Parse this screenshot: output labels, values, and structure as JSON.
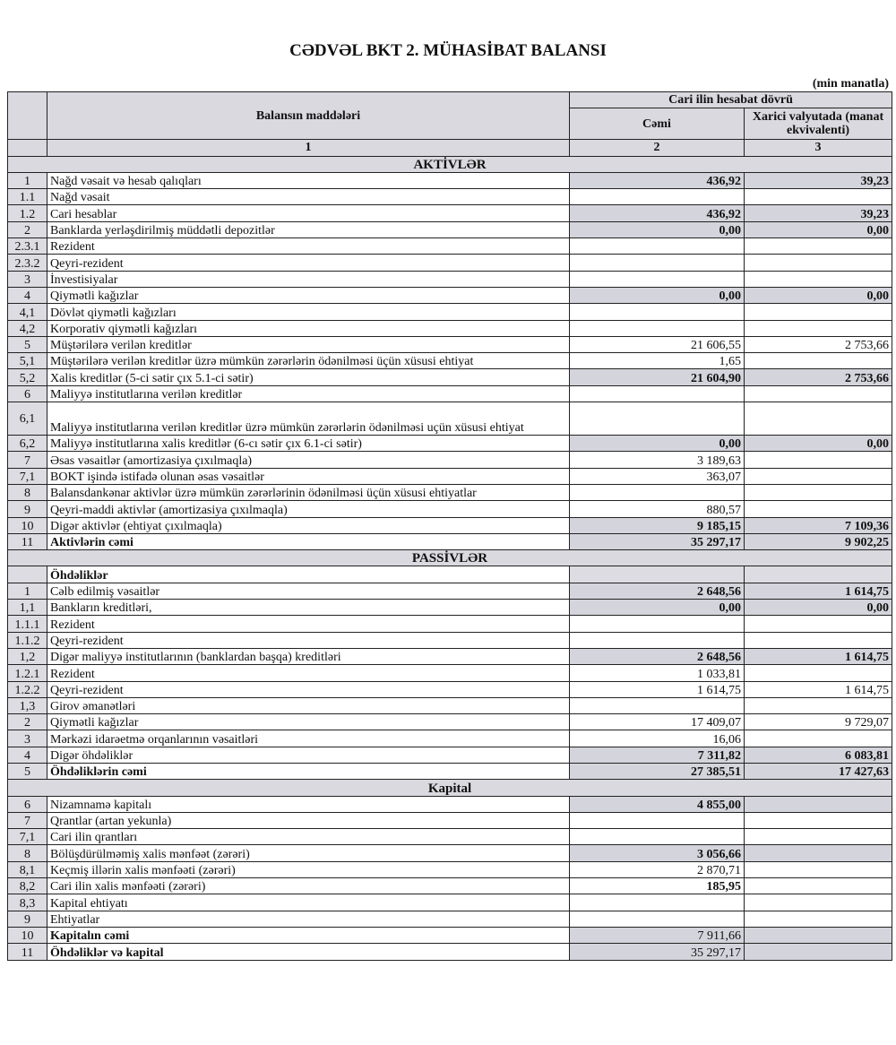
{
  "title": "CƏDVƏL BKT 2. MÜHASİBAT BALANSI",
  "unit": "(min manatla)",
  "header": {
    "items": "Balansın maddələri",
    "period": "Cari ilin hesabat dövrü",
    "col2": "Cəmi",
    "col3": "Xarici valyutada (manat ekvivalenti)",
    "n1": "1",
    "n2": "2",
    "n3": "3"
  },
  "sections": [
    {
      "title": "AKTİVLƏR",
      "rows": [
        {
          "no": "1",
          "label": "Nağd vəsait və hesab qalıqları",
          "c2": "436,92",
          "c3": "39,23",
          "b": 1,
          "sh": 1
        },
        {
          "no": "1.1",
          "label": "Nağd vəsait",
          "c2": "",
          "c3": ""
        },
        {
          "no": "1.2",
          "label": "Cari hesablar",
          "c2": "436,92",
          "c3": "39,23",
          "b": 1,
          "sh": 1
        },
        {
          "no": "2",
          "label": "Banklarda yerləşdirilmiş müddətli depozitlər",
          "c2": "0,00",
          "c3": "0,00",
          "b": 1,
          "sh": 1
        },
        {
          "no": "2.3.1",
          "label": "Rezident",
          "c2": "",
          "c3": ""
        },
        {
          "no": "2.3.2",
          "label": "Qeyri-rezident",
          "c2": "",
          "c3": ""
        },
        {
          "no": "3",
          "label": "İnvestisiyalar",
          "c2": "",
          "c3": ""
        },
        {
          "no": "4",
          "label": "Qiymətli kağızlar",
          "c2": "0,00",
          "c3": "0,00",
          "b": 1,
          "sh": 1
        },
        {
          "no": "4,1",
          "label": "Dövlət qiymətli kağızları",
          "c2": "",
          "c3": ""
        },
        {
          "no": "4,2",
          "label": "Korporativ qiymətli kağızları",
          "c2": "",
          "c3": ""
        },
        {
          "no": "5",
          "label": "Müştərilərə verilən kreditlər",
          "c2": "21 606,55",
          "c3": "2 753,66"
        },
        {
          "no": "5,1",
          "label": "Müştərilərə verilən kreditlər üzrə mümkün zərərlərin ödənilməsi üçün xüsusi ehtiyat",
          "c2": "1,65",
          "c3": ""
        },
        {
          "no": "5,2",
          "label": "Xalis kreditlər (5-ci sətir çıx 5.1-ci sətir)",
          "c2": "21 604,90",
          "c3": "2 753,66",
          "b": 1,
          "sh": 1
        },
        {
          "no": "6",
          "label": "Maliyyə institutlarına verilən kreditlər",
          "c2": "",
          "c3": ""
        },
        {
          "no": "6,1",
          "label": "Maliyyə institutlarına verilən kreditlər üzrə mümkün zərərlərin ödənilməsi uçün xüsusi ehtiyat",
          "c2": "",
          "c3": "",
          "tall": 1
        },
        {
          "no": "6,2",
          "label": "Maliyyə institutlarına xalis kreditlər (6-cı sətir çıx 6.1-ci sətir)",
          "c2": "0,00",
          "c3": "0,00",
          "b": 1,
          "sh": 1
        },
        {
          "no": "7",
          "label": "Əsas vəsaitlər (amortizasiya çıxılmaqla)",
          "c2": "3 189,63",
          "c3": ""
        },
        {
          "no": "7,1",
          "label": "BOKT işində istifadə olunan əsas vəsaitlər",
          "c2": "363,07",
          "c3": ""
        },
        {
          "no": "8",
          "label": "Balansdankənar aktivlər üzrə mümkün zərərlərinin ödənilməsi üçün xüsusi ehtiyatlar",
          "c2": "",
          "c3": ""
        },
        {
          "no": "9",
          "label": "Qeyri-maddi aktivlər (amortizasiya çıxılmaqla)",
          "c2": "880,57",
          "c3": ""
        },
        {
          "no": "10",
          "label": "Digər aktivlər (ehtiyat çıxılmaqla)",
          "c2": "9 185,15",
          "c3": "7 109,36",
          "b": 1,
          "sh": 1
        },
        {
          "no": "11",
          "label": "Aktivlərin cəmi",
          "c2": "35 297,17",
          "c3": "9 902,25",
          "b": 1,
          "sh": 1,
          "lb": 1
        }
      ]
    },
    {
      "title": "PASSİVLƏR",
      "rows": [
        {
          "no": "",
          "label": "Öhdəliklər",
          "c2": "",
          "c3": "",
          "lb": 1,
          "blank": 1
        },
        {
          "no": "1",
          "label": "Cəlb edilmiş vəsaitlər",
          "c2": "2 648,56",
          "c3": "1 614,75",
          "b": 1,
          "sh": 1
        },
        {
          "no": "1,1",
          "label": "Bankların kreditləri,",
          "c2": "0,00",
          "c3": "0,00",
          "b": 1,
          "sh": 1
        },
        {
          "no": "1.1.1",
          "label": "Rezident",
          "c2": "",
          "c3": ""
        },
        {
          "no": "1.1.2",
          "label": "Qeyri-rezident",
          "c2": "",
          "c3": ""
        },
        {
          "no": "1,2",
          "label": "Digər maliyyə institutlarının (banklardan başqa) kreditləri",
          "c2": "2 648,56",
          "c3": "1 614,75",
          "b": 1,
          "sh": 1
        },
        {
          "no": "1.2.1",
          "label": "Rezident",
          "c2": "1 033,81",
          "c3": ""
        },
        {
          "no": "1.2.2",
          "label": "Qeyri-rezident",
          "c2": "1 614,75",
          "c3": "1 614,75"
        },
        {
          "no": "1,3",
          "label": "Girov əmanətləri",
          "c2": "",
          "c3": ""
        },
        {
          "no": "2",
          "label": "Qiymətli kağızlar",
          "c2": "17 409,07",
          "c3": "9 729,07"
        },
        {
          "no": "3",
          "label": "Mərkəzi idarəetmə orqanlarının vəsaitləri",
          "c2": "16,06",
          "c3": ""
        },
        {
          "no": "4",
          "label": "Digər öhdəliklər",
          "c2": "7 311,82",
          "c3": "6 083,81",
          "b": 1,
          "sh": 1
        },
        {
          "no": "5",
          "label": "Öhdəliklərin cəmi",
          "c2": "27 385,51",
          "c3": "17 427,63",
          "b": 1,
          "sh": 1,
          "lb": 1
        }
      ]
    },
    {
      "title": "Kapital",
      "rows": [
        {
          "no": "6",
          "label": "Nizamnamə kapitalı",
          "c2": "4 855,00",
          "c3": "",
          "b": 1,
          "sh": 1
        },
        {
          "no": "7",
          "label": "Qrantlar (artan yekunla)",
          "c2": "",
          "c3": ""
        },
        {
          "no": "7,1",
          "label": "Cari ilin qrantları",
          "c2": "",
          "c3": ""
        },
        {
          "no": "8",
          "label": "Bölüşdürülməmiş xalis mənfəət (zərəri)",
          "c2": "3 056,66",
          "c3": "",
          "b": 1,
          "sh": 1
        },
        {
          "no": "8,1",
          "label": "Keçmiş illərin xalis mənfəəti (zərəri)",
          "c2": "2 870,71",
          "c3": ""
        },
        {
          "no": "8,2",
          "label": "Cari ilin xalis mənfəəti (zərəri)",
          "c2": "185,95",
          "c3": "",
          "b": 1
        },
        {
          "no": "8,3",
          "label": "Kapital ehtiyatı",
          "c2": "",
          "c3": ""
        },
        {
          "no": "9",
          "label": "Ehtiyatlar",
          "c2": "",
          "c3": ""
        },
        {
          "no": "10",
          "label": "Kapitalın cəmi",
          "c2": "7 911,66",
          "c3": "",
          "sh": 1,
          "lb": 1
        },
        {
          "no": "11",
          "label": "Öhdəliklər və kapital",
          "c2": "35 297,17",
          "c3": "",
          "sh": 1,
          "lb": 1
        }
      ]
    }
  ]
}
